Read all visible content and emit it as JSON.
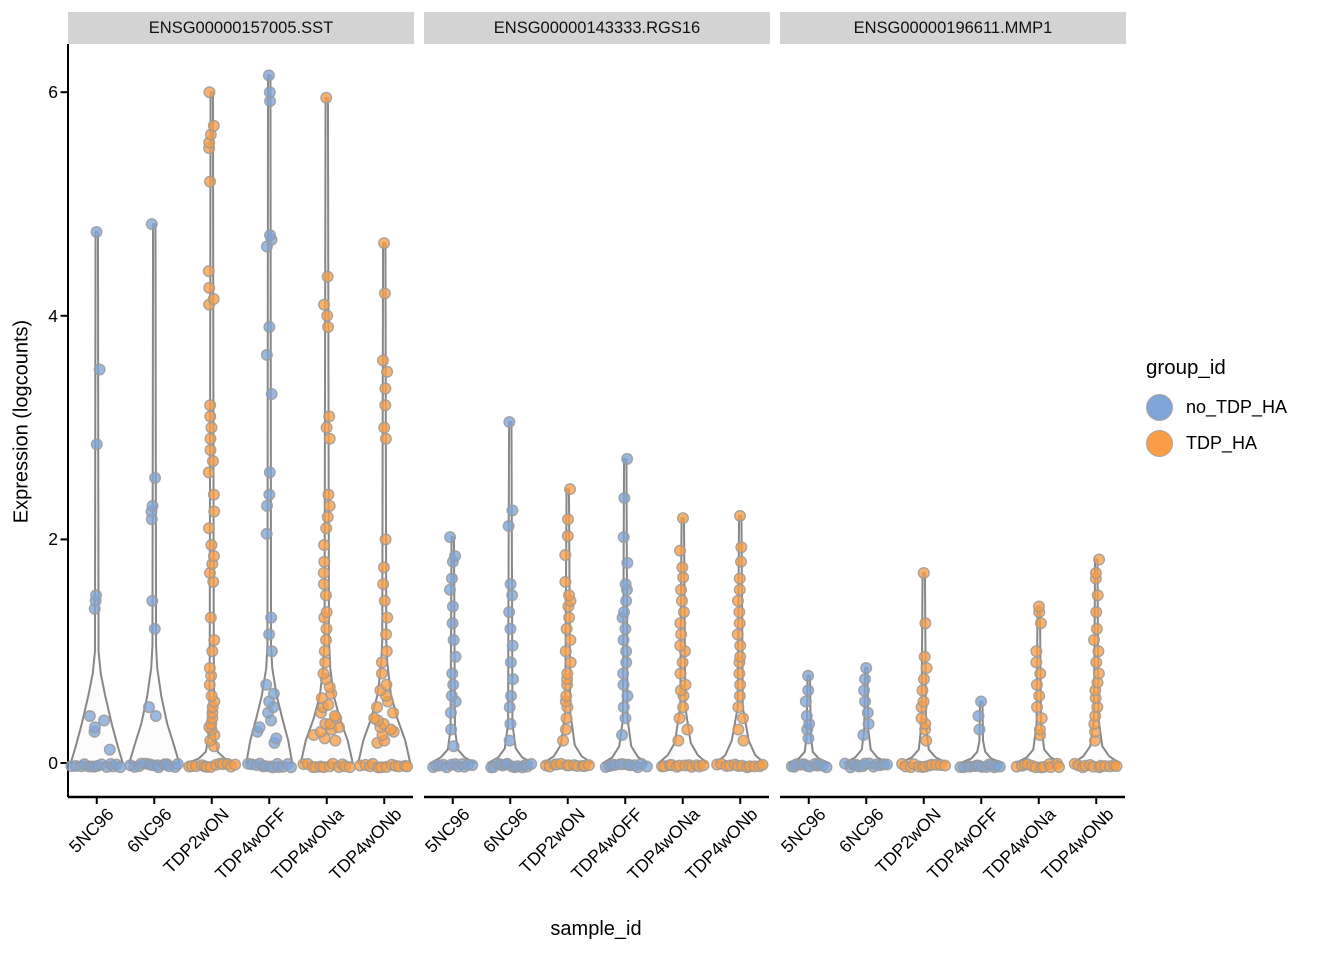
{
  "chart_data": {
    "type": "violin-jitter",
    "xlabel": "sample_id",
    "ylabel": "Expression (logcounts)",
    "yticks": [
      0,
      2,
      4,
      6
    ],
    "ylim": [
      -0.15,
      6.3
    ],
    "x_categories": [
      "5NC96",
      "6NC96",
      "TDP2wON",
      "TDP4wOFF",
      "TDP4wONa",
      "TDP4wONb"
    ],
    "legend": {
      "title": "group_id",
      "position": "right",
      "items": [
        {
          "label": "no_TDP_HA",
          "color": "#7FA5D6"
        },
        {
          "label": "TDP_HA",
          "color": "#F99E45"
        }
      ]
    },
    "group_of_sample": {
      "5NC96": "no_TDP_HA",
      "6NC96": "no_TDP_HA",
      "TDP2wON": "TDP_HA",
      "TDP4wOFF": "no_TDP_HA",
      "TDP4wONa": "TDP_HA",
      "TDP4wONb": "TDP_HA"
    },
    "style": {
      "violin_fill": "#FAFAFA",
      "violin_stroke": "#878787",
      "point_stroke": "#9A9A9A",
      "strip_bg": "#D3D3D3",
      "axis_color": "#000000"
    },
    "facets": [
      {
        "label": "ENSG00000157005.SST",
        "samples": [
          {
            "sample": "5NC96",
            "group": "no_TDP_HA",
            "zeros": 14,
            "points": [
              0.12,
              0.28,
              0.32,
              0.38,
              0.42,
              1.38,
              1.45,
              1.5,
              2.85,
              3.52,
              4.75
            ],
            "violin": [
              [
                0,
                26
              ],
              [
                0.15,
                21
              ],
              [
                0.35,
                15
              ],
              [
                0.6,
                8.5
              ],
              [
                0.8,
                4
              ],
              [
                1.0,
                1.8
              ]
            ],
            "max": 4.75
          },
          {
            "sample": "6NC96",
            "group": "no_TDP_HA",
            "zeros": 14,
            "points": [
              0.42,
              0.5,
              1.2,
              1.45,
              2.18,
              2.25,
              2.3,
              2.55,
              4.82
            ],
            "violin": [
              [
                0,
                25
              ],
              [
                0.15,
                20
              ],
              [
                0.35,
                13
              ],
              [
                0.6,
                7
              ],
              [
                0.85,
                3
              ],
              [
                1.05,
                1.8
              ]
            ],
            "max": 4.82
          },
          {
            "sample": "TDP2wON",
            "group": "TDP_HA",
            "zeros": 13,
            "points": [
              0.15,
              0.2,
              0.25,
              0.3,
              0.32,
              0.35,
              0.4,
              0.45,
              0.5,
              0.55,
              0.6,
              0.7,
              0.78,
              0.85,
              1.0,
              1.1,
              1.3,
              1.62,
              1.7,
              1.78,
              1.85,
              1.95,
              2.1,
              2.25,
              2.4,
              2.6,
              2.7,
              2.8,
              2.9,
              3.0,
              3.1,
              3.2,
              4.1,
              4.15,
              4.25,
              4.4,
              5.2,
              5.5,
              5.55,
              5.62,
              5.7,
              6.0
            ],
            "violin": [
              [
                0,
                24
              ],
              [
                0.04,
                13
              ],
              [
                0.1,
                6
              ],
              [
                0.22,
                3.5
              ],
              [
                0.5,
                2.4
              ],
              [
                1.0,
                2.0
              ]
            ],
            "max": 6.0
          },
          {
            "sample": "TDP4wOFF",
            "group": "no_TDP_HA",
            "zeros": 13,
            "points": [
              0.18,
              0.22,
              0.28,
              0.32,
              0.38,
              0.45,
              0.5,
              0.55,
              0.62,
              0.7,
              1.0,
              1.15,
              1.3,
              2.05,
              2.3,
              2.4,
              2.6,
              3.3,
              3.65,
              3.9,
              4.62,
              4.68,
              4.72,
              5.92,
              6.0,
              6.15
            ],
            "violin": [
              [
                0,
                23
              ],
              [
                0.2,
                19
              ],
              [
                0.4,
                13
              ],
              [
                0.6,
                7.5
              ],
              [
                0.85,
                3
              ],
              [
                1.05,
                1.8
              ]
            ],
            "max": 6.15
          },
          {
            "sample": "TDP4wONa",
            "group": "TDP_HA",
            "zeros": 12,
            "points": [
              0.2,
              0.22,
              0.25,
              0.28,
              0.3,
              0.32,
              0.35,
              0.35,
              0.4,
              0.42,
              0.45,
              0.5,
              0.52,
              0.58,
              0.62,
              0.68,
              0.75,
              0.8,
              0.9,
              1.0,
              1.1,
              1.2,
              1.3,
              1.35,
              1.5,
              1.6,
              1.7,
              1.8,
              1.95,
              2.1,
              2.2,
              2.3,
              2.4,
              2.9,
              3.0,
              3.1,
              3.9,
              4.0,
              4.1,
              4.35,
              5.95
            ],
            "violin": [
              [
                0,
                26
              ],
              [
                0.2,
                21
              ],
              [
                0.4,
                13
              ],
              [
                0.6,
                7
              ],
              [
                0.85,
                3.5
              ],
              [
                1.1,
                2.2
              ]
            ],
            "max": 5.95
          },
          {
            "sample": "TDP4wONb",
            "group": "TDP_HA",
            "zeros": 12,
            "points": [
              0.18,
              0.2,
              0.25,
              0.28,
              0.3,
              0.32,
              0.35,
              0.38,
              0.4,
              0.45,
              0.5,
              0.55,
              0.6,
              0.65,
              0.7,
              0.8,
              0.9,
              1.0,
              1.15,
              1.3,
              1.45,
              1.6,
              1.75,
              2.0,
              2.9,
              3.0,
              3.2,
              3.35,
              3.5,
              3.6,
              4.2,
              4.65
            ],
            "violin": [
              [
                0,
                26
              ],
              [
                0.2,
                21
              ],
              [
                0.4,
                13
              ],
              [
                0.62,
                6.5
              ],
              [
                0.9,
                3
              ],
              [
                1.1,
                2
              ]
            ],
            "max": 4.65
          }
        ]
      },
      {
        "label": "ENSG00000143333.RGS16",
        "samples": [
          {
            "sample": "5NC96",
            "group": "no_TDP_HA",
            "zeros": 12,
            "points": [
              0.15,
              0.3,
              0.45,
              0.55,
              0.6,
              0.7,
              0.8,
              0.95,
              1.1,
              1.25,
              1.4,
              1.55,
              1.65,
              1.8,
              1.85,
              2.02
            ],
            "violin": [
              [
                0,
                22
              ],
              [
                0.05,
                12
              ],
              [
                0.12,
                5
              ],
              [
                0.3,
                2.2
              ]
            ],
            "max": 2.02
          },
          {
            "sample": "6NC96",
            "group": "no_TDP_HA",
            "zeros": 14,
            "points": [
              0.2,
              0.35,
              0.5,
              0.6,
              0.75,
              0.9,
              1.05,
              1.2,
              1.35,
              1.5,
              1.6,
              2.12,
              2.26,
              3.05
            ],
            "violin": [
              [
                0,
                22
              ],
              [
                0.05,
                12
              ],
              [
                0.13,
                5.5
              ],
              [
                0.35,
                2.2
              ]
            ],
            "max": 3.05
          },
          {
            "sample": "TDP2wON",
            "group": "TDP_HA",
            "zeros": 12,
            "points": [
              0.2,
              0.3,
              0.4,
              0.5,
              0.55,
              0.6,
              0.7,
              0.75,
              0.8,
              0.9,
              1.0,
              1.1,
              1.2,
              1.3,
              1.4,
              1.45,
              1.5,
              1.62,
              1.86,
              2.03,
              2.18,
              2.45
            ],
            "violin": [
              [
                0,
                24
              ],
              [
                0.06,
                14
              ],
              [
                0.16,
                7
              ],
              [
                0.45,
                2.5
              ]
            ],
            "max": 2.45
          },
          {
            "sample": "TDP4wOFF",
            "group": "no_TDP_HA",
            "zeros": 12,
            "points": [
              0.25,
              0.4,
              0.5,
              0.6,
              0.7,
              0.8,
              0.9,
              1.0,
              1.1,
              1.2,
              1.3,
              1.35,
              1.45,
              1.55,
              1.6,
              1.79,
              2.02,
              2.37,
              2.72
            ],
            "violin": [
              [
                0,
                22
              ],
              [
                0.05,
                13
              ],
              [
                0.15,
                6
              ],
              [
                0.4,
                2.2
              ]
            ],
            "max": 2.72
          },
          {
            "sample": "TDP4wONa",
            "group": "TDP_HA",
            "zeros": 12,
            "points": [
              0.2,
              0.3,
              0.4,
              0.5,
              0.6,
              0.65,
              0.7,
              0.8,
              0.9,
              1.0,
              1.05,
              1.15,
              1.25,
              1.35,
              1.45,
              1.55,
              1.66,
              1.75,
              1.9,
              2.19
            ],
            "violin": [
              [
                0,
                24
              ],
              [
                0.07,
                15
              ],
              [
                0.18,
                8
              ],
              [
                0.5,
                2.5
              ]
            ],
            "max": 2.19
          },
          {
            "sample": "TDP4wONb",
            "group": "TDP_HA",
            "zeros": 12,
            "points": [
              0.2,
              0.3,
              0.4,
              0.5,
              0.6,
              0.7,
              0.8,
              0.9,
              0.95,
              1.05,
              1.15,
              1.25,
              1.35,
              1.45,
              1.55,
              1.65,
              1.8,
              1.93,
              2.21
            ],
            "violin": [
              [
                0,
                24
              ],
              [
                0.07,
                15
              ],
              [
                0.2,
                8.5
              ],
              [
                0.5,
                2.5
              ]
            ],
            "max": 2.21
          }
        ]
      },
      {
        "label": "ENSG00000196611.MMP1",
        "samples": [
          {
            "sample": "5NC96",
            "group": "no_TDP_HA",
            "zeros": 12,
            "points": [
              0.22,
              0.3,
              0.35,
              0.42,
              0.55,
              0.65,
              0.78
            ],
            "violin": [
              [
                0,
                20
              ],
              [
                0.04,
                10
              ],
              [
                0.1,
                4
              ],
              [
                0.25,
                2
              ]
            ],
            "max": 0.78
          },
          {
            "sample": "6NC96",
            "group": "no_TDP_HA",
            "zeros": 13,
            "points": [
              0.25,
              0.35,
              0.45,
              0.55,
              0.65,
              0.75,
              0.85
            ],
            "violin": [
              [
                0,
                22
              ],
              [
                0.05,
                11
              ],
              [
                0.12,
                4.5
              ],
              [
                0.3,
                2
              ]
            ],
            "max": 0.85
          },
          {
            "sample": "TDP2wON",
            "group": "TDP_HA",
            "zeros": 12,
            "points": [
              0.2,
              0.3,
              0.35,
              0.4,
              0.5,
              0.55,
              0.65,
              0.75,
              0.85,
              0.95,
              1.25,
              1.7
            ],
            "violin": [
              [
                0,
                23
              ],
              [
                0.05,
                12
              ],
              [
                0.12,
                5
              ],
              [
                0.35,
                2.2
              ]
            ],
            "max": 1.7
          },
          {
            "sample": "TDP4wOFF",
            "group": "no_TDP_HA",
            "zeros": 14,
            "points": [
              0.3,
              0.42,
              0.55
            ],
            "violin": [
              [
                0,
                21
              ],
              [
                0.04,
                10
              ],
              [
                0.1,
                4
              ],
              [
                0.2,
                1.8
              ]
            ],
            "max": 0.55
          },
          {
            "sample": "TDP4wONa",
            "group": "TDP_HA",
            "zeros": 12,
            "points": [
              0.25,
              0.3,
              0.4,
              0.5,
              0.6,
              0.7,
              0.8,
              0.9,
              1.0,
              1.25,
              1.35,
              1.4
            ],
            "violin": [
              [
                0,
                23
              ],
              [
                0.05,
                12
              ],
              [
                0.12,
                5.5
              ],
              [
                0.35,
                2.2
              ]
            ],
            "max": 1.4
          },
          {
            "sample": "TDP4wONb",
            "group": "TDP_HA",
            "zeros": 12,
            "points": [
              0.2,
              0.28,
              0.35,
              0.42,
              0.5,
              0.58,
              0.65,
              0.72,
              0.8,
              0.9,
              1.0,
              1.1,
              1.2,
              1.35,
              1.5,
              1.65,
              1.7,
              1.82
            ],
            "violin": [
              [
                0,
                23
              ],
              [
                0.06,
                13
              ],
              [
                0.15,
                6
              ],
              [
                0.4,
                2.2
              ]
            ],
            "max": 1.82
          }
        ]
      }
    ]
  }
}
